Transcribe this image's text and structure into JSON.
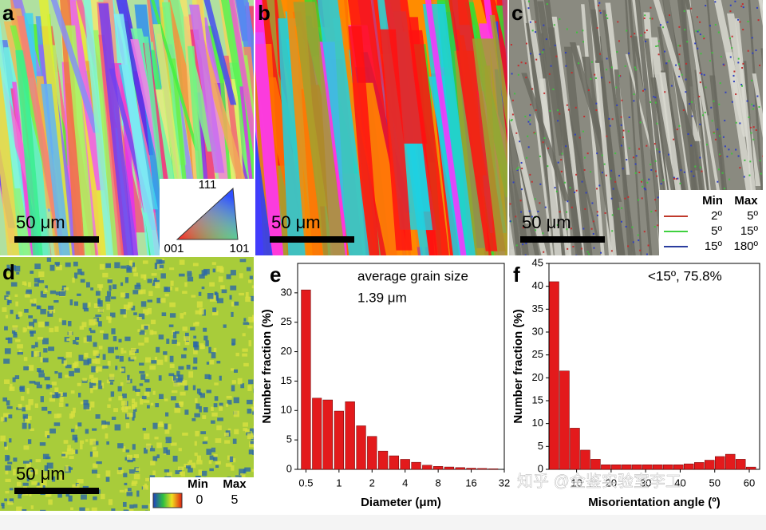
{
  "panels": {
    "labels": [
      "a",
      "b",
      "c",
      "d",
      "e",
      "f"
    ],
    "scale_bar": "50 μm",
    "ipf_legend": [
      "111",
      "001",
      "101"
    ],
    "misorientation_legend": {
      "header": [
        "Min",
        "Max"
      ],
      "rows": [
        [
          "2º",
          "5º"
        ],
        [
          "5º",
          "15º"
        ],
        [
          "15º",
          "180º"
        ]
      ],
      "colors": [
        "#c0392b",
        "#3fd13f",
        "#2a3d9e"
      ]
    },
    "kam_legend": {
      "header": [
        "Min",
        "Max"
      ],
      "values": [
        "0",
        "5"
      ]
    }
  },
  "watermark": "知乎 @金鉴实验室李工",
  "chart_data": [
    {
      "type": "bar",
      "annotation": [
        "average grain size",
        "1.39 μm"
      ],
      "x": [
        0.5,
        0.63,
        0.79,
        1,
        1.26,
        1.59,
        2,
        2.52,
        3.17,
        4,
        5.04,
        6.35,
        8,
        10.08,
        12.7,
        16,
        20.16,
        25.4
      ],
      "values": [
        30.5,
        12.1,
        11.8,
        9.9,
        11.5,
        7.4,
        5.6,
        3.1,
        2.3,
        1.7,
        1.2,
        0.7,
        0.5,
        0.4,
        0.3,
        0.2,
        0.15,
        0.1
      ],
      "color": "#e31a1c",
      "xlabel": "Diameter (μm)",
      "ylabel": "Number fraction (%)",
      "xscale": "log",
      "xlim": [
        0.42,
        32
      ],
      "xticks": [
        0.5,
        1,
        2,
        4,
        8,
        16,
        32
      ],
      "ylim": [
        0,
        35
      ],
      "yticks": [
        0,
        5,
        10,
        15,
        20,
        25,
        30
      ]
    },
    {
      "type": "histogram",
      "annotation": [
        "<15º, 75.8%"
      ],
      "bins": [
        2,
        5,
        8,
        11,
        14,
        17,
        20,
        23,
        26,
        29,
        32,
        35,
        38,
        41,
        44,
        47,
        50,
        53,
        56,
        59,
        62
      ],
      "values": [
        41,
        21.5,
        9,
        4.2,
        2.2,
        1,
        1,
        1,
        1,
        1,
        1,
        1,
        1,
        1.2,
        1.5,
        2,
        2.8,
        3.3,
        2.2,
        0.5
      ],
      "color": "#e31a1c",
      "xlabel": "Misorientation angle (º)",
      "ylabel": "Number fraction (%)",
      "xlim": [
        2,
        63
      ],
      "xticks": [
        10,
        20,
        30,
        40,
        50,
        60
      ],
      "ylim": [
        0,
        45
      ],
      "yticks": [
        0,
        5,
        10,
        15,
        20,
        25,
        30,
        35,
        40,
        45
      ]
    }
  ]
}
